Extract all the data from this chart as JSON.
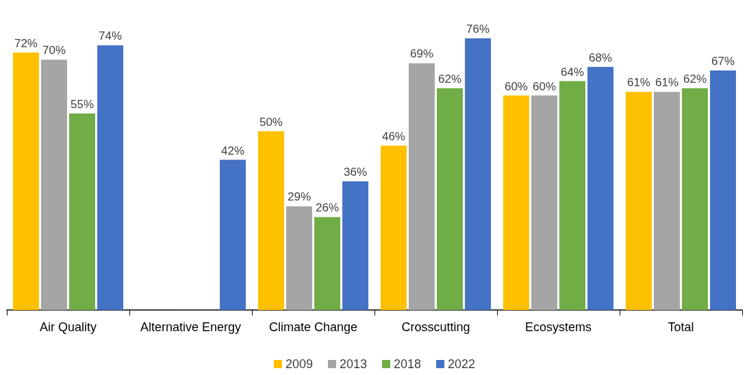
{
  "chart_data": {
    "type": "bar",
    "categories": [
      "Air Quality",
      "Alternative Energy",
      "Climate Change",
      "Crosscutting",
      "Ecosystems",
      "Total"
    ],
    "series": [
      {
        "name": "2009",
        "color": "#ffc000",
        "values": [
          72,
          null,
          50,
          46,
          60,
          61
        ],
        "value_labels": [
          "72%",
          null,
          "50%",
          "46%",
          "60%",
          "61%"
        ]
      },
      {
        "name": "2013",
        "color": "#a5a5a5",
        "values": [
          70,
          null,
          29,
          69,
          60,
          61
        ],
        "value_labels": [
          "70%",
          null,
          "29%",
          "69%",
          "60%",
          "61%"
        ]
      },
      {
        "name": "2018",
        "color": "#70ad47",
        "values": [
          55,
          null,
          26,
          62,
          64,
          62
        ],
        "value_labels": [
          "55%",
          null,
          "26%",
          "62%",
          "64%",
          "62%"
        ]
      },
      {
        "name": "2022",
        "color": "#4472c4",
        "values": [
          74,
          42,
          36,
          76,
          68,
          67
        ],
        "value_labels": [
          "74%",
          "42%",
          "36%",
          "76%",
          "68%",
          "67%"
        ]
      }
    ],
    "grid": false,
    "legend": "bottom"
  }
}
